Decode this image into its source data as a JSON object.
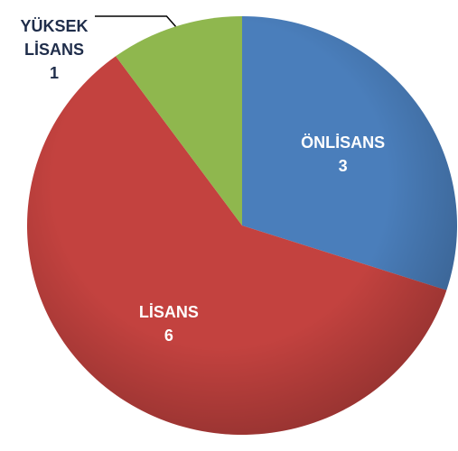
{
  "chart_data": {
    "type": "pie",
    "categories": [
      "ÖNLİSANS",
      "LİSANS",
      "YÜKSEK LİSANS"
    ],
    "values": [
      3,
      6,
      1
    ],
    "colors": [
      "#4a7ebb",
      "#c3423f",
      "#8fb74e"
    ]
  }
}
